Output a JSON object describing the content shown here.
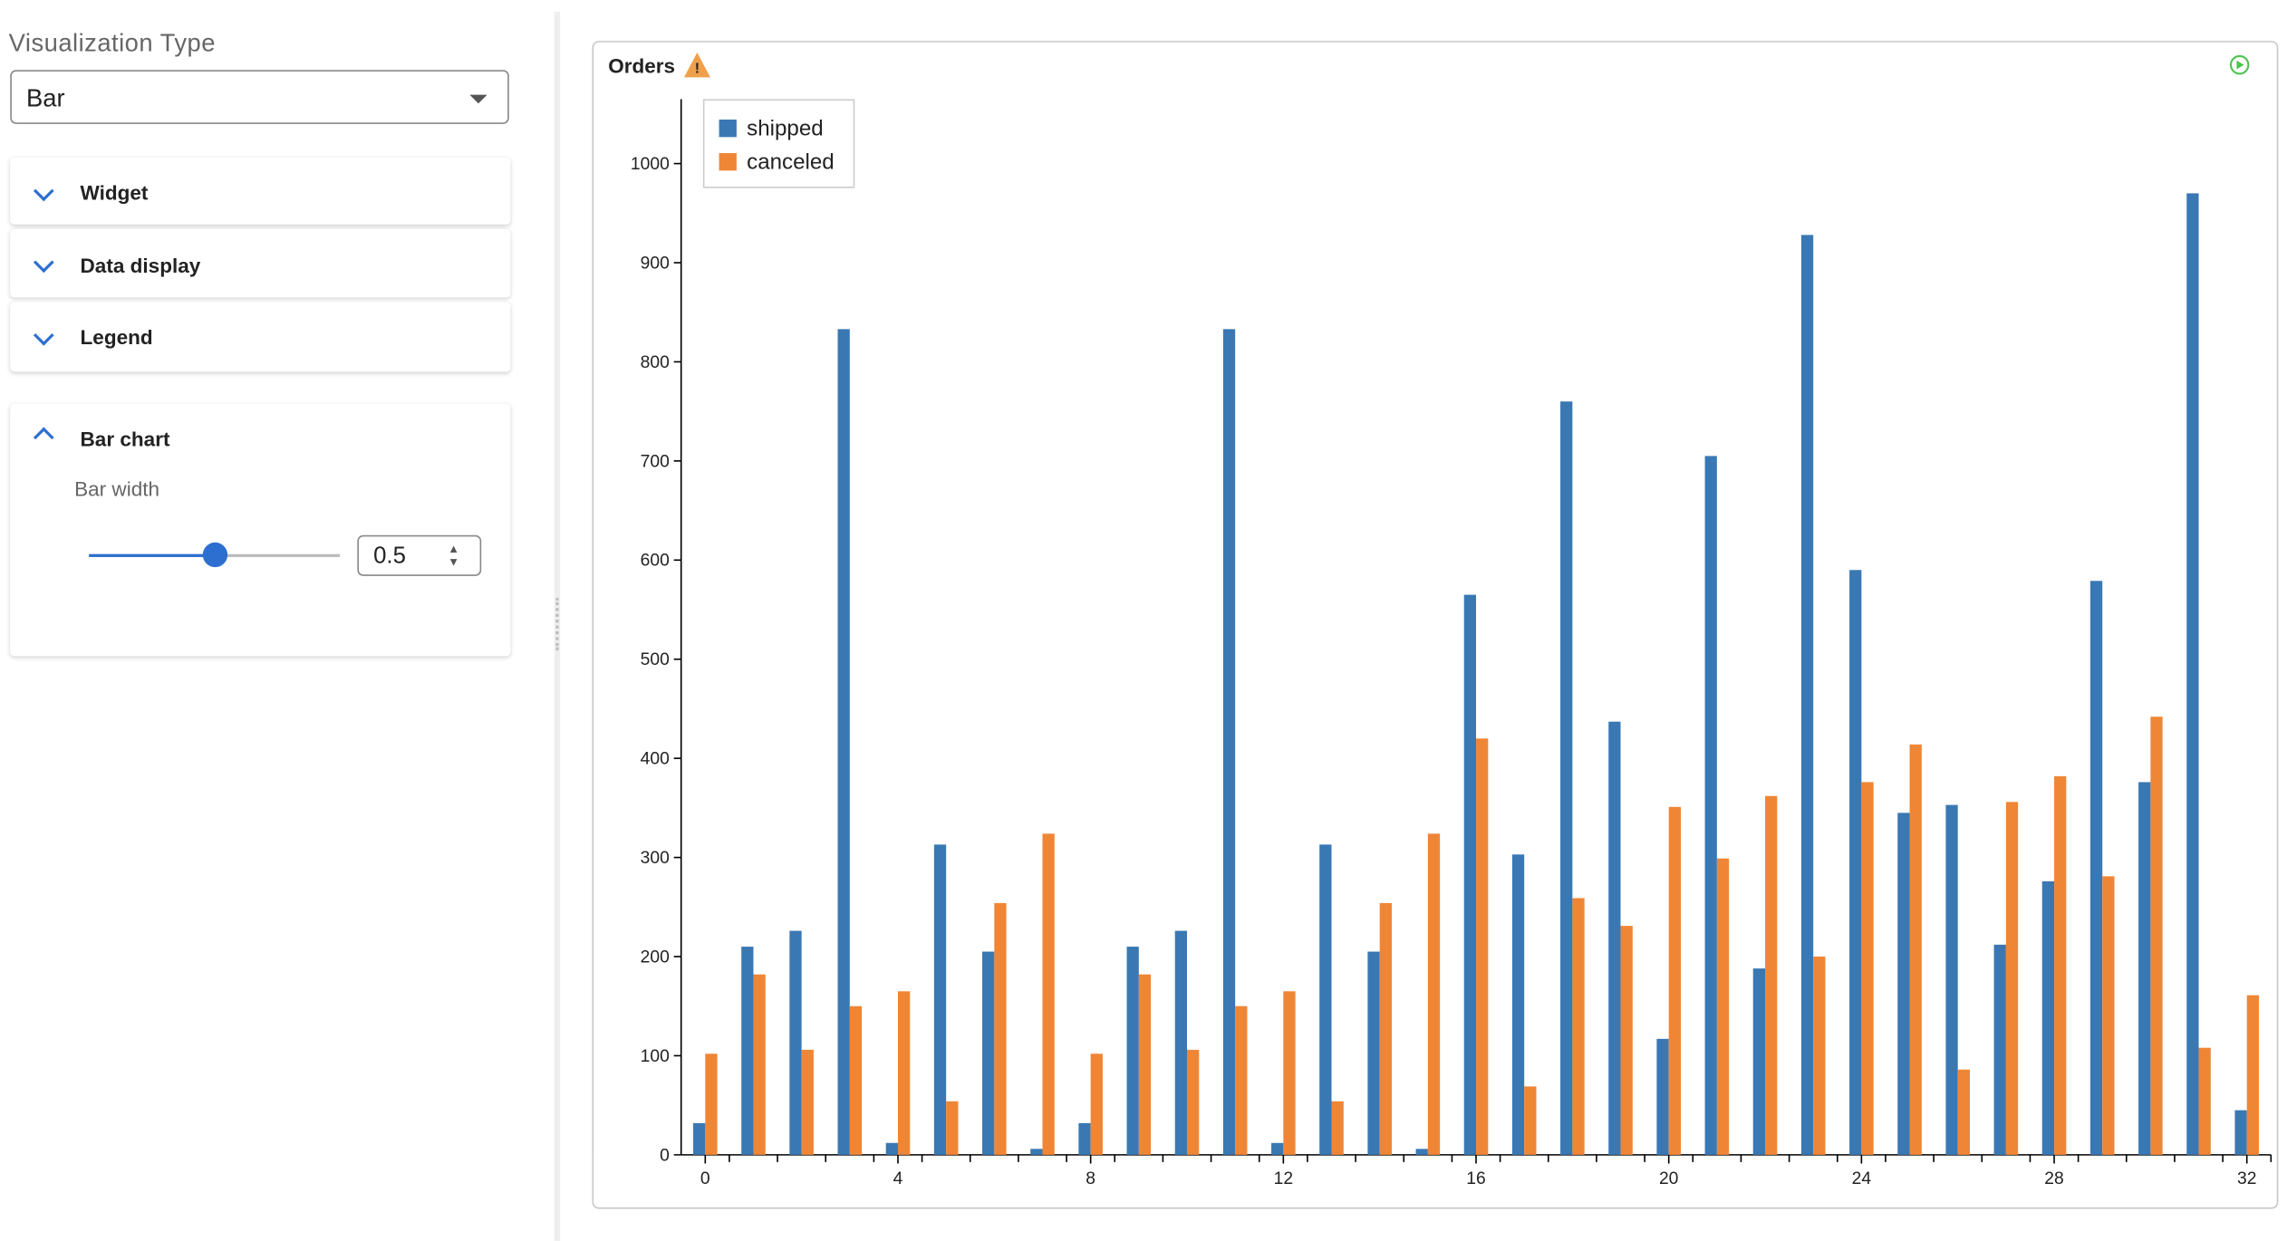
{
  "sidebar": {
    "viz_label": "Visualization Type",
    "viz_value": "Bar",
    "sections": [
      "Widget",
      "Data display",
      "Legend"
    ],
    "bar_chart": {
      "title": "Bar chart",
      "bar_width_label": "Bar width",
      "bar_width": 0.5
    }
  },
  "chart_data": {
    "type": "bar",
    "title": "Orders",
    "x": [
      0,
      1,
      2,
      3,
      4,
      5,
      6,
      7,
      8,
      9,
      10,
      11,
      12,
      13,
      14,
      15,
      16,
      17,
      18,
      19,
      20,
      21,
      22,
      23,
      24,
      25,
      26,
      27,
      28,
      29,
      30,
      31,
      32
    ],
    "series": [
      {
        "name": "shipped",
        "color": "#3a78b4",
        "values": [
          32,
          210,
          226,
          833,
          12,
          313,
          205,
          6,
          32,
          210,
          226,
          833,
          12,
          313,
          205,
          6,
          565,
          303,
          760,
          437,
          117,
          705,
          188,
          928,
          590,
          345,
          353,
          212,
          276,
          579,
          376,
          970,
          45
        ]
      },
      {
        "name": "canceled",
        "color": "#ef8636",
        "values": [
          102,
          182,
          106,
          150,
          165,
          54,
          254,
          324,
          102,
          182,
          106,
          150,
          165,
          54,
          254,
          324,
          420,
          69,
          259,
          231,
          351,
          299,
          362,
          200,
          376,
          414,
          86,
          356,
          382,
          281,
          442,
          108,
          161
        ]
      }
    ],
    "xlim": [
      -0.5,
      32.5
    ],
    "xticks": [
      0,
      4,
      8,
      12,
      16,
      20,
      24,
      28,
      32
    ],
    "ylim": [
      0,
      1065
    ],
    "yticks": [
      0,
      100,
      200,
      300,
      400,
      500,
      600,
      700,
      800,
      900,
      1000
    ],
    "legend": "upper-left"
  }
}
